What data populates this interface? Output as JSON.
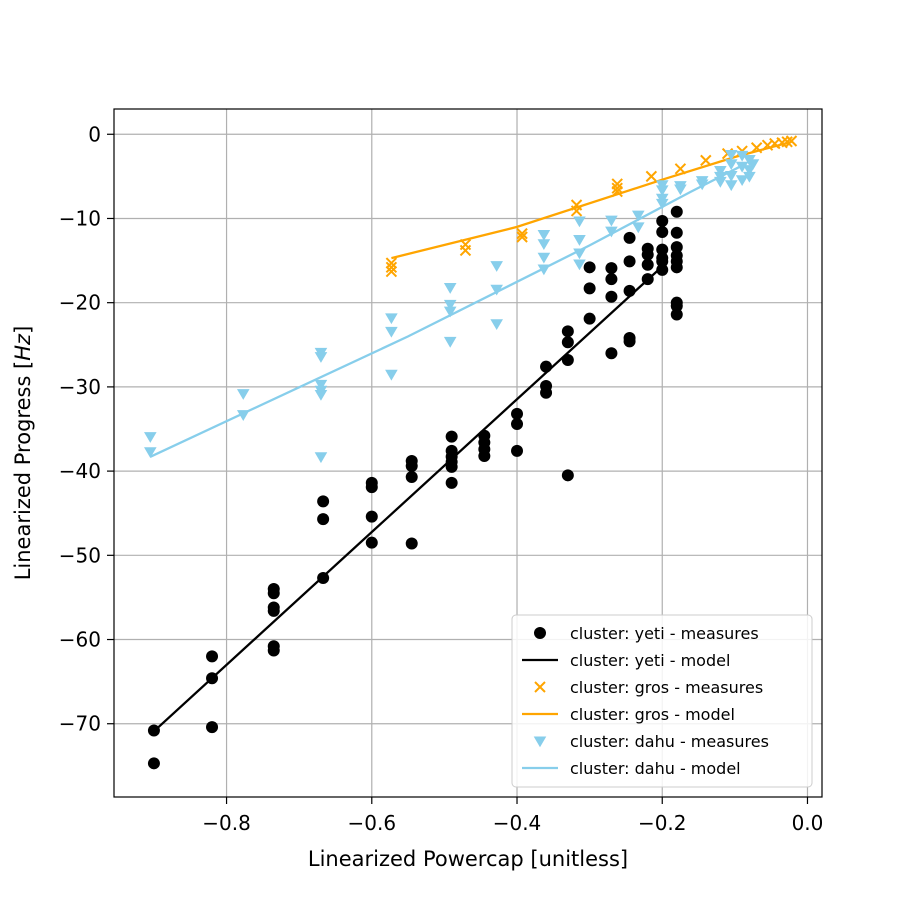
{
  "chart_data": {
    "type": "scatter",
    "xlabel": "Linearized Powercap [unitless]",
    "ylabel_main": "Linearized Progress [",
    "ylabel_unit": "Hz",
    "ylabel_end": "]",
    "xlim": [
      -0.955,
      0.02
    ],
    "ylim": [
      -78.7,
      3.0
    ],
    "xticks": [
      -0.8,
      -0.6,
      -0.4,
      -0.2,
      0.0
    ],
    "xtick_labels": [
      "−0.8",
      "−0.6",
      "−0.4",
      "−0.2",
      "0.0"
    ],
    "yticks": [
      0,
      -10,
      -20,
      -30,
      -40,
      -50,
      -60,
      -70
    ],
    "ytick_labels": [
      "0",
      "−10",
      "−20",
      "−30",
      "−40",
      "−50",
      "−60",
      "−70"
    ],
    "grid": true,
    "legend_position": "bottom-right",
    "colors": {
      "yeti": "#000000",
      "gros": "#ffa500",
      "dahu": "#87ceeb"
    },
    "series": [
      {
        "name": "cluster: yeti - measures",
        "kind": "scatter",
        "marker": "circle",
        "color": "#000000",
        "points": [
          [
            -0.9,
            -70.8
          ],
          [
            -0.9,
            -74.7
          ],
          [
            -0.82,
            -62.0
          ],
          [
            -0.82,
            -64.6
          ],
          [
            -0.82,
            -70.4
          ],
          [
            -0.735,
            -54.0
          ],
          [
            -0.735,
            -54.5
          ],
          [
            -0.735,
            -56.2
          ],
          [
            -0.735,
            -56.6
          ],
          [
            -0.735,
            -60.8
          ],
          [
            -0.735,
            -61.3
          ],
          [
            -0.667,
            -43.6
          ],
          [
            -0.667,
            -45.7
          ],
          [
            -0.667,
            -52.7
          ],
          [
            -0.6,
            -41.4
          ],
          [
            -0.6,
            -41.9
          ],
          [
            -0.6,
            -45.4
          ],
          [
            -0.6,
            -48.5
          ],
          [
            -0.545,
            -38.8
          ],
          [
            -0.545,
            -39.4
          ],
          [
            -0.545,
            -40.7
          ],
          [
            -0.545,
            -48.6
          ],
          [
            -0.49,
            -35.9
          ],
          [
            -0.49,
            -37.6
          ],
          [
            -0.49,
            -38.3
          ],
          [
            -0.49,
            -38.9
          ],
          [
            -0.49,
            -39.5
          ],
          [
            -0.49,
            -41.4
          ],
          [
            -0.445,
            -35.8
          ],
          [
            -0.445,
            -36.6
          ],
          [
            -0.445,
            -37.4
          ],
          [
            -0.445,
            -38.2
          ],
          [
            -0.4,
            -33.2
          ],
          [
            -0.4,
            -34.4
          ],
          [
            -0.4,
            -37.6
          ],
          [
            -0.36,
            -27.6
          ],
          [
            -0.36,
            -29.9
          ],
          [
            -0.36,
            -30.7
          ],
          [
            -0.33,
            -23.4
          ],
          [
            -0.33,
            -24.7
          ],
          [
            -0.33,
            -26.8
          ],
          [
            -0.33,
            -40.5
          ],
          [
            -0.3,
            -15.8
          ],
          [
            -0.3,
            -18.3
          ],
          [
            -0.3,
            -21.9
          ],
          [
            -0.27,
            -15.9
          ],
          [
            -0.27,
            -17.2
          ],
          [
            -0.27,
            -19.3
          ],
          [
            -0.27,
            -26.0
          ],
          [
            -0.245,
            -12.3
          ],
          [
            -0.245,
            -15.1
          ],
          [
            -0.245,
            -18.6
          ],
          [
            -0.245,
            -24.2
          ],
          [
            -0.245,
            -24.6
          ],
          [
            -0.22,
            -13.6
          ],
          [
            -0.22,
            -14.3
          ],
          [
            -0.22,
            -15.5
          ],
          [
            -0.22,
            -17.2
          ],
          [
            -0.2,
            -10.3
          ],
          [
            -0.2,
            -11.6
          ],
          [
            -0.2,
            -13.7
          ],
          [
            -0.2,
            -14.7
          ],
          [
            -0.2,
            -15.1
          ],
          [
            -0.2,
            -16.1
          ],
          [
            -0.18,
            -9.2
          ],
          [
            -0.18,
            -11.7
          ],
          [
            -0.18,
            -13.4
          ],
          [
            -0.18,
            -14.4
          ],
          [
            -0.18,
            -15.1
          ],
          [
            -0.18,
            -15.8
          ],
          [
            -0.18,
            -20.0
          ],
          [
            -0.18,
            -20.4
          ],
          [
            -0.18,
            -21.4
          ]
        ]
      },
      {
        "name": "cluster: yeti - model",
        "kind": "line",
        "color": "#000000",
        "points": [
          [
            -0.9,
            -70.9
          ],
          [
            -0.195,
            -15.3
          ]
        ]
      },
      {
        "name": "cluster: gros - measures",
        "kind": "scatter",
        "marker": "x",
        "color": "#ffa500",
        "points": [
          [
            -0.573,
            -15.3
          ],
          [
            -0.573,
            -15.8
          ],
          [
            -0.573,
            -16.3
          ],
          [
            -0.471,
            -13.1
          ],
          [
            -0.471,
            -13.8
          ],
          [
            -0.393,
            -11.8
          ],
          [
            -0.393,
            -12.2
          ],
          [
            -0.318,
            -8.4
          ],
          [
            -0.318,
            -9.1
          ],
          [
            -0.262,
            -5.9
          ],
          [
            -0.262,
            -6.4
          ],
          [
            -0.262,
            -6.8
          ],
          [
            -0.215,
            -5.0
          ],
          [
            -0.175,
            -4.1
          ],
          [
            -0.14,
            -3.1
          ],
          [
            -0.11,
            -2.3
          ],
          [
            -0.09,
            -2.0
          ],
          [
            -0.07,
            -1.6
          ],
          [
            -0.055,
            -1.3
          ],
          [
            -0.045,
            -1.1
          ],
          [
            -0.035,
            -1.0
          ],
          [
            -0.028,
            -0.9
          ],
          [
            -0.022,
            -0.8
          ]
        ]
      },
      {
        "name": "cluster: gros - model",
        "kind": "line",
        "color": "#ffa500",
        "points": [
          [
            -0.573,
            -14.7
          ],
          [
            -0.4,
            -11.0
          ],
          [
            -0.2,
            -5.4
          ],
          [
            -0.1,
            -2.7
          ],
          [
            -0.022,
            -0.9
          ]
        ]
      },
      {
        "name": "cluster: dahu - measures",
        "kind": "scatter",
        "marker": "triangle-down",
        "color": "#87ceeb",
        "points": [
          [
            -0.905,
            -35.9
          ],
          [
            -0.905,
            -37.7
          ],
          [
            -0.777,
            -30.8
          ],
          [
            -0.777,
            -33.3
          ],
          [
            -0.67,
            -25.9
          ],
          [
            -0.67,
            -26.4
          ],
          [
            -0.67,
            -29.7
          ],
          [
            -0.67,
            -30.4
          ],
          [
            -0.67,
            -30.9
          ],
          [
            -0.67,
            -38.3
          ],
          [
            -0.573,
            -21.8
          ],
          [
            -0.573,
            -23.4
          ],
          [
            -0.573,
            -28.5
          ],
          [
            -0.492,
            -18.2
          ],
          [
            -0.492,
            -20.2
          ],
          [
            -0.492,
            -21.0
          ],
          [
            -0.492,
            -24.6
          ],
          [
            -0.428,
            -15.6
          ],
          [
            -0.428,
            -18.4
          ],
          [
            -0.428,
            -22.5
          ],
          [
            -0.363,
            -11.9
          ],
          [
            -0.363,
            -13.0
          ],
          [
            -0.363,
            -14.6
          ],
          [
            -0.363,
            -16.0
          ],
          [
            -0.314,
            -10.3
          ],
          [
            -0.314,
            -12.5
          ],
          [
            -0.314,
            -14.1
          ],
          [
            -0.314,
            -15.4
          ],
          [
            -0.27,
            -10.2
          ],
          [
            -0.27,
            -11.5
          ],
          [
            -0.233,
            -9.6
          ],
          [
            -0.233,
            -11.0
          ],
          [
            -0.2,
            -6.0
          ],
          [
            -0.2,
            -6.6
          ],
          [
            -0.2,
            -7.6
          ],
          [
            -0.2,
            -8.2
          ],
          [
            -0.175,
            -6.1
          ],
          [
            -0.175,
            -6.5
          ],
          [
            -0.145,
            -5.5
          ],
          [
            -0.145,
            -5.9
          ],
          [
            -0.12,
            -4.3
          ],
          [
            -0.12,
            -5.0
          ],
          [
            -0.12,
            -5.6
          ],
          [
            -0.105,
            -2.4
          ],
          [
            -0.105,
            -3.5
          ],
          [
            -0.105,
            -4.9
          ],
          [
            -0.105,
            -6.0
          ],
          [
            -0.09,
            -2.5
          ],
          [
            -0.09,
            -3.8
          ],
          [
            -0.09,
            -5.4
          ],
          [
            -0.08,
            -3.0
          ],
          [
            -0.08,
            -4.2
          ],
          [
            -0.08,
            -5.0
          ],
          [
            -0.075,
            -3.5
          ]
        ]
      },
      {
        "name": "cluster: dahu - model",
        "kind": "line",
        "color": "#87ceeb",
        "points": [
          [
            -0.905,
            -38.3
          ],
          [
            -0.55,
            -24.0
          ],
          [
            -0.3,
            -13.2
          ],
          [
            -0.16,
            -6.8
          ],
          [
            -0.085,
            -3.5
          ]
        ]
      }
    ]
  }
}
